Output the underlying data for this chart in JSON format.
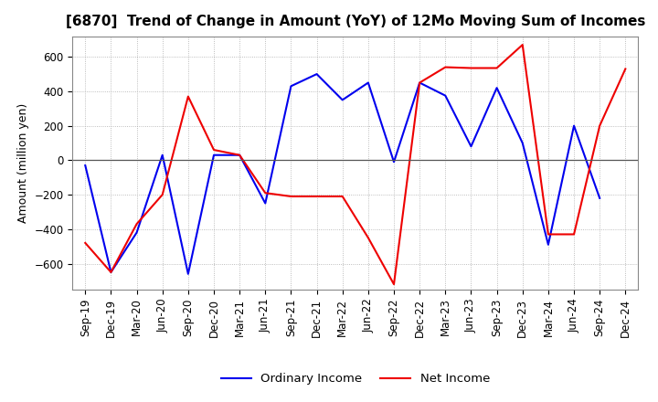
{
  "title": "[6870]  Trend of Change in Amount (YoY) of 12Mo Moving Sum of Incomes",
  "ylabel": "Amount (million yen)",
  "ylim": [
    -750,
    720
  ],
  "yticks": [
    -600,
    -400,
    -200,
    0,
    200,
    400,
    600
  ],
  "x_labels": [
    "Sep-19",
    "Dec-19",
    "Mar-20",
    "Jun-20",
    "Sep-20",
    "Dec-20",
    "Mar-21",
    "Jun-21",
    "Sep-21",
    "Dec-21",
    "Mar-22",
    "Jun-22",
    "Sep-22",
    "Dec-22",
    "Mar-23",
    "Jun-23",
    "Sep-23",
    "Dec-23",
    "Mar-24",
    "Jun-24",
    "Sep-24",
    "Dec-24"
  ],
  "ordinary_income": [
    -30,
    -650,
    -420,
    30,
    -660,
    30,
    30,
    -250,
    430,
    500,
    350,
    450,
    -10,
    450,
    375,
    80,
    420,
    100,
    -490,
    200,
    -220,
    null
  ],
  "net_income": [
    -480,
    -650,
    -370,
    -200,
    370,
    60,
    30,
    -190,
    -210,
    -210,
    -210,
    -450,
    -720,
    450,
    540,
    535,
    535,
    670,
    -430,
    -430,
    200,
    530
  ],
  "ordinary_color": "#0000ee",
  "net_color": "#ee0000",
  "grid_color": "#aaaaaa",
  "background_color": "#ffffff",
  "legend_labels": [
    "Ordinary Income",
    "Net Income"
  ],
  "title_fontsize": 11,
  "tick_fontsize": 8.5,
  "ylabel_fontsize": 9
}
